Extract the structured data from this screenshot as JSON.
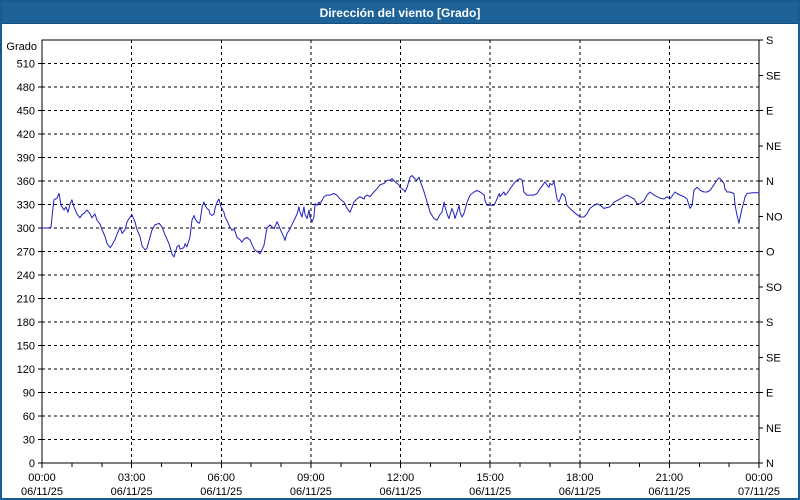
{
  "window": {
    "title": "Dirección del viento [Grado]"
  },
  "colors": {
    "title_bar_bg": "#1d6298",
    "window_border": "#1a5a8c",
    "series_line": "#2121bd",
    "grid": "#000000",
    "plot_bg": "#ffffff"
  },
  "chart_data": {
    "type": "line",
    "title": "Dirección del viento [Grado]",
    "y_left": {
      "label": "Grado",
      "min": 0,
      "max": 540,
      "tick_step": 30,
      "tick_values": [
        0,
        30,
        60,
        90,
        120,
        150,
        180,
        210,
        240,
        270,
        300,
        330,
        360,
        390,
        420,
        450,
        480,
        510
      ]
    },
    "y_right": {
      "tick_values": [
        0,
        45,
        90,
        135,
        180,
        225,
        270,
        315,
        360,
        405,
        450,
        495,
        540
      ],
      "tick_labels": [
        "N",
        "NE",
        "E",
        "SE",
        "S",
        "SO",
        "O",
        "NO",
        "N",
        "NE",
        "E",
        "SE",
        "S"
      ]
    },
    "x_axis": {
      "range_hours": [
        0,
        24
      ],
      "minor_tick_hours": 1,
      "major_tick_hours": 3,
      "major_labels": [
        {
          "hour": 0,
          "time": "00:00",
          "date": "06/11/25"
        },
        {
          "hour": 3,
          "time": "03:00",
          "date": "06/11/25"
        },
        {
          "hour": 6,
          "time": "06:00",
          "date": "06/11/25"
        },
        {
          "hour": 9,
          "time": "09:00",
          "date": "06/11/25"
        },
        {
          "hour": 12,
          "time": "12:00",
          "date": "06/11/25"
        },
        {
          "hour": 15,
          "time": "15:00",
          "date": "06/11/25"
        },
        {
          "hour": 18,
          "time": "18:00",
          "date": "06/11/25"
        },
        {
          "hour": 21,
          "time": "21:00",
          "date": "06/11/25"
        },
        {
          "hour": 24,
          "time": "00:00",
          "date": "07/11/25"
        }
      ],
      "grid_on_major": true
    },
    "legend": "none",
    "series": [
      {
        "name": "Dirección del viento",
        "unit": "Grado",
        "color": "#2121bd",
        "points": [
          [
            0,
            300
          ],
          [
            0.2,
            300
          ],
          [
            0.3,
            301
          ],
          [
            0.35,
            320
          ],
          [
            0.4,
            336
          ],
          [
            0.5,
            338
          ],
          [
            0.57,
            344
          ],
          [
            0.64,
            329
          ],
          [
            0.74,
            323
          ],
          [
            0.8,
            327
          ],
          [
            0.87,
            320
          ],
          [
            0.94,
            331
          ],
          [
            1.0,
            336
          ],
          [
            1.07,
            327
          ],
          [
            1.17,
            318
          ],
          [
            1.27,
            313
          ],
          [
            1.34,
            317
          ],
          [
            1.44,
            320
          ],
          [
            1.51,
            323
          ],
          [
            1.61,
            318
          ],
          [
            1.67,
            313
          ],
          [
            1.77,
            318
          ],
          [
            1.84,
            310
          ],
          [
            1.94,
            305
          ],
          [
            2.01,
            298
          ],
          [
            2.11,
            289
          ],
          [
            2.18,
            280
          ],
          [
            2.28,
            275
          ],
          [
            2.34,
            278
          ],
          [
            2.44,
            285
          ],
          [
            2.51,
            292
          ],
          [
            2.61,
            301
          ],
          [
            2.68,
            293
          ],
          [
            2.78,
            298
          ],
          [
            2.85,
            308
          ],
          [
            2.95,
            314
          ],
          [
            3.01,
            317
          ],
          [
            3.11,
            308
          ],
          [
            3.18,
            298
          ],
          [
            3.28,
            289
          ],
          [
            3.35,
            277
          ],
          [
            3.45,
            272
          ],
          [
            3.51,
            274
          ],
          [
            3.68,
            297
          ],
          [
            3.78,
            304
          ],
          [
            3.92,
            306
          ],
          [
            4.02,
            301
          ],
          [
            4.12,
            291
          ],
          [
            4.25,
            280
          ],
          [
            4.35,
            267
          ],
          [
            4.42,
            263
          ],
          [
            4.52,
            276
          ],
          [
            4.59,
            278
          ],
          [
            4.62,
            273
          ],
          [
            4.75,
            275
          ],
          [
            4.79,
            280
          ],
          [
            4.85,
            276
          ],
          [
            4.95,
            288
          ],
          [
            5.02,
            310
          ],
          [
            5.09,
            316
          ],
          [
            5.12,
            312
          ],
          [
            5.19,
            308
          ],
          [
            5.26,
            306
          ],
          [
            5.29,
            308
          ],
          [
            5.36,
            327
          ],
          [
            5.42,
            333
          ],
          [
            5.46,
            329
          ],
          [
            5.52,
            325
          ],
          [
            5.59,
            323
          ],
          [
            5.62,
            318
          ],
          [
            5.69,
            316
          ],
          [
            5.76,
            318
          ],
          [
            5.79,
            325
          ],
          [
            5.86,
            333
          ],
          [
            5.92,
            337
          ],
          [
            5.99,
            327
          ],
          [
            6.09,
            320
          ],
          [
            6.13,
            314
          ],
          [
            6.19,
            310
          ],
          [
            6.29,
            301
          ],
          [
            6.36,
            297
          ],
          [
            6.43,
            299
          ],
          [
            6.53,
            288
          ],
          [
            6.63,
            285
          ],
          [
            6.69,
            282
          ],
          [
            6.76,
            286
          ],
          [
            6.86,
            288
          ],
          [
            6.96,
            285
          ],
          [
            7.1,
            273
          ],
          [
            7.2,
            270
          ],
          [
            7.3,
            267
          ],
          [
            7.43,
            278
          ],
          [
            7.53,
            300
          ],
          [
            7.63,
            304
          ],
          [
            7.77,
            299
          ],
          [
            7.87,
            308
          ],
          [
            7.97,
            299
          ],
          [
            8.1,
            288
          ],
          [
            8.13,
            284
          ],
          [
            8.2,
            293
          ],
          [
            8.3,
            299
          ],
          [
            8.44,
            310
          ],
          [
            8.54,
            318
          ],
          [
            8.6,
            327
          ],
          [
            8.64,
            320
          ],
          [
            8.7,
            314
          ],
          [
            8.77,
            327
          ],
          [
            8.8,
            318
          ],
          [
            8.87,
            312
          ],
          [
            8.94,
            323
          ],
          [
            8.97,
            314
          ],
          [
            9.04,
            308
          ],
          [
            9.1,
            314
          ],
          [
            9.14,
            331
          ],
          [
            9.21,
            329
          ],
          [
            9.27,
            333
          ],
          [
            9.31,
            331
          ],
          [
            9.44,
            340
          ],
          [
            9.54,
            342
          ],
          [
            9.64,
            342
          ],
          [
            9.77,
            344
          ],
          [
            9.87,
            342
          ],
          [
            9.97,
            337
          ],
          [
            10.11,
            333
          ],
          [
            10.21,
            325
          ],
          [
            10.31,
            320
          ],
          [
            10.38,
            327
          ],
          [
            10.44,
            333
          ],
          [
            10.54,
            337
          ],
          [
            10.64,
            340
          ],
          [
            10.78,
            337
          ],
          [
            10.81,
            340
          ],
          [
            10.88,
            342
          ],
          [
            10.98,
            340
          ],
          [
            11.11,
            346
          ],
          [
            11.21,
            350
          ],
          [
            11.31,
            355
          ],
          [
            11.45,
            357
          ],
          [
            11.55,
            361
          ],
          [
            11.65,
            361
          ],
          [
            11.72,
            363
          ],
          [
            11.82,
            359
          ],
          [
            11.95,
            355
          ],
          [
            11.98,
            352
          ],
          [
            12.12,
            348
          ],
          [
            12.15,
            346
          ],
          [
            12.22,
            352
          ],
          [
            12.32,
            365
          ],
          [
            12.38,
            367
          ],
          [
            12.48,
            363
          ],
          [
            12.55,
            361
          ],
          [
            12.62,
            365
          ],
          [
            12.65,
            361
          ],
          [
            12.79,
            346
          ],
          [
            12.89,
            333
          ],
          [
            12.99,
            320
          ],
          [
            13.12,
            312
          ],
          [
            13.22,
            310
          ],
          [
            13.32,
            317
          ],
          [
            13.39,
            320
          ],
          [
            13.46,
            333
          ],
          [
            13.49,
            327
          ],
          [
            13.56,
            318
          ],
          [
            13.62,
            312
          ],
          [
            13.66,
            317
          ],
          [
            13.72,
            325
          ],
          [
            13.79,
            318
          ],
          [
            13.82,
            312
          ],
          [
            13.89,
            320
          ],
          [
            13.96,
            329
          ],
          [
            13.99,
            320
          ],
          [
            14.06,
            314
          ],
          [
            14.12,
            318
          ],
          [
            14.23,
            333
          ],
          [
            14.33,
            342
          ],
          [
            14.46,
            346
          ],
          [
            14.56,
            348
          ],
          [
            14.66,
            346
          ],
          [
            14.8,
            342
          ],
          [
            14.83,
            335
          ],
          [
            14.9,
            329
          ],
          [
            15.0,
            329
          ],
          [
            15.13,
            329
          ],
          [
            15.23,
            337
          ],
          [
            15.3,
            344
          ],
          [
            15.33,
            340
          ],
          [
            15.46,
            346
          ],
          [
            15.5,
            342
          ],
          [
            15.56,
            344
          ],
          [
            15.67,
            350
          ],
          [
            15.8,
            357
          ],
          [
            15.9,
            361
          ],
          [
            16.0,
            363
          ],
          [
            16.07,
            361
          ],
          [
            16.13,
            346
          ],
          [
            16.23,
            342
          ],
          [
            16.33,
            342
          ],
          [
            16.47,
            342
          ],
          [
            16.57,
            344
          ],
          [
            16.67,
            350
          ],
          [
            16.8,
            357
          ],
          [
            16.84,
            359
          ],
          [
            16.9,
            355
          ],
          [
            16.97,
            352
          ],
          [
            17.0,
            357
          ],
          [
            17.07,
            355
          ],
          [
            17.14,
            359
          ],
          [
            17.17,
            352
          ],
          [
            17.24,
            337
          ],
          [
            17.3,
            333
          ],
          [
            17.34,
            337
          ],
          [
            17.41,
            344
          ],
          [
            17.47,
            342
          ],
          [
            17.51,
            340
          ],
          [
            17.57,
            329
          ],
          [
            17.67,
            325
          ],
          [
            17.81,
            320
          ],
          [
            17.91,
            317
          ],
          [
            18.01,
            314
          ],
          [
            18.14,
            314
          ],
          [
            18.24,
            318
          ],
          [
            18.34,
            325
          ],
          [
            18.48,
            329
          ],
          [
            18.58,
            331
          ],
          [
            18.68,
            329
          ],
          [
            18.81,
            325
          ],
          [
            18.91,
            326
          ],
          [
            19.01,
            327
          ],
          [
            19.15,
            333
          ],
          [
            19.25,
            335
          ],
          [
            19.35,
            337
          ],
          [
            19.48,
            340
          ],
          [
            19.58,
            342
          ],
          [
            19.68,
            340
          ],
          [
            19.82,
            337
          ],
          [
            19.92,
            331
          ],
          [
            20.02,
            331
          ],
          [
            20.15,
            335
          ],
          [
            20.25,
            342
          ],
          [
            20.35,
            346
          ],
          [
            20.42,
            344
          ],
          [
            20.49,
            342
          ],
          [
            20.59,
            340
          ],
          [
            20.69,
            338
          ],
          [
            20.82,
            337
          ],
          [
            20.92,
            340
          ],
          [
            21.02,
            337
          ],
          [
            21.15,
            344
          ],
          [
            21.19,
            346
          ],
          [
            21.26,
            344
          ],
          [
            21.36,
            342
          ],
          [
            21.49,
            340
          ],
          [
            21.59,
            337
          ],
          [
            21.66,
            329
          ],
          [
            21.69,
            325
          ],
          [
            21.76,
            329
          ],
          [
            21.82,
            348
          ],
          [
            21.92,
            352
          ],
          [
            21.99,
            350
          ],
          [
            22.03,
            348
          ],
          [
            22.16,
            346
          ],
          [
            22.26,
            346
          ],
          [
            22.36,
            348
          ],
          [
            22.49,
            355
          ],
          [
            22.59,
            361
          ],
          [
            22.66,
            364
          ],
          [
            22.7,
            363
          ],
          [
            22.83,
            357
          ],
          [
            22.86,
            350
          ],
          [
            22.93,
            346
          ],
          [
            23.03,
            346
          ],
          [
            23.16,
            344
          ],
          [
            23.2,
            329
          ],
          [
            23.26,
            317
          ],
          [
            23.33,
            306
          ],
          [
            23.36,
            312
          ],
          [
            23.43,
            325
          ],
          [
            23.49,
            333
          ],
          [
            23.53,
            340
          ],
          [
            23.6,
            344
          ],
          [
            23.77,
            345
          ],
          [
            24.0,
            345
          ]
        ]
      }
    ]
  }
}
